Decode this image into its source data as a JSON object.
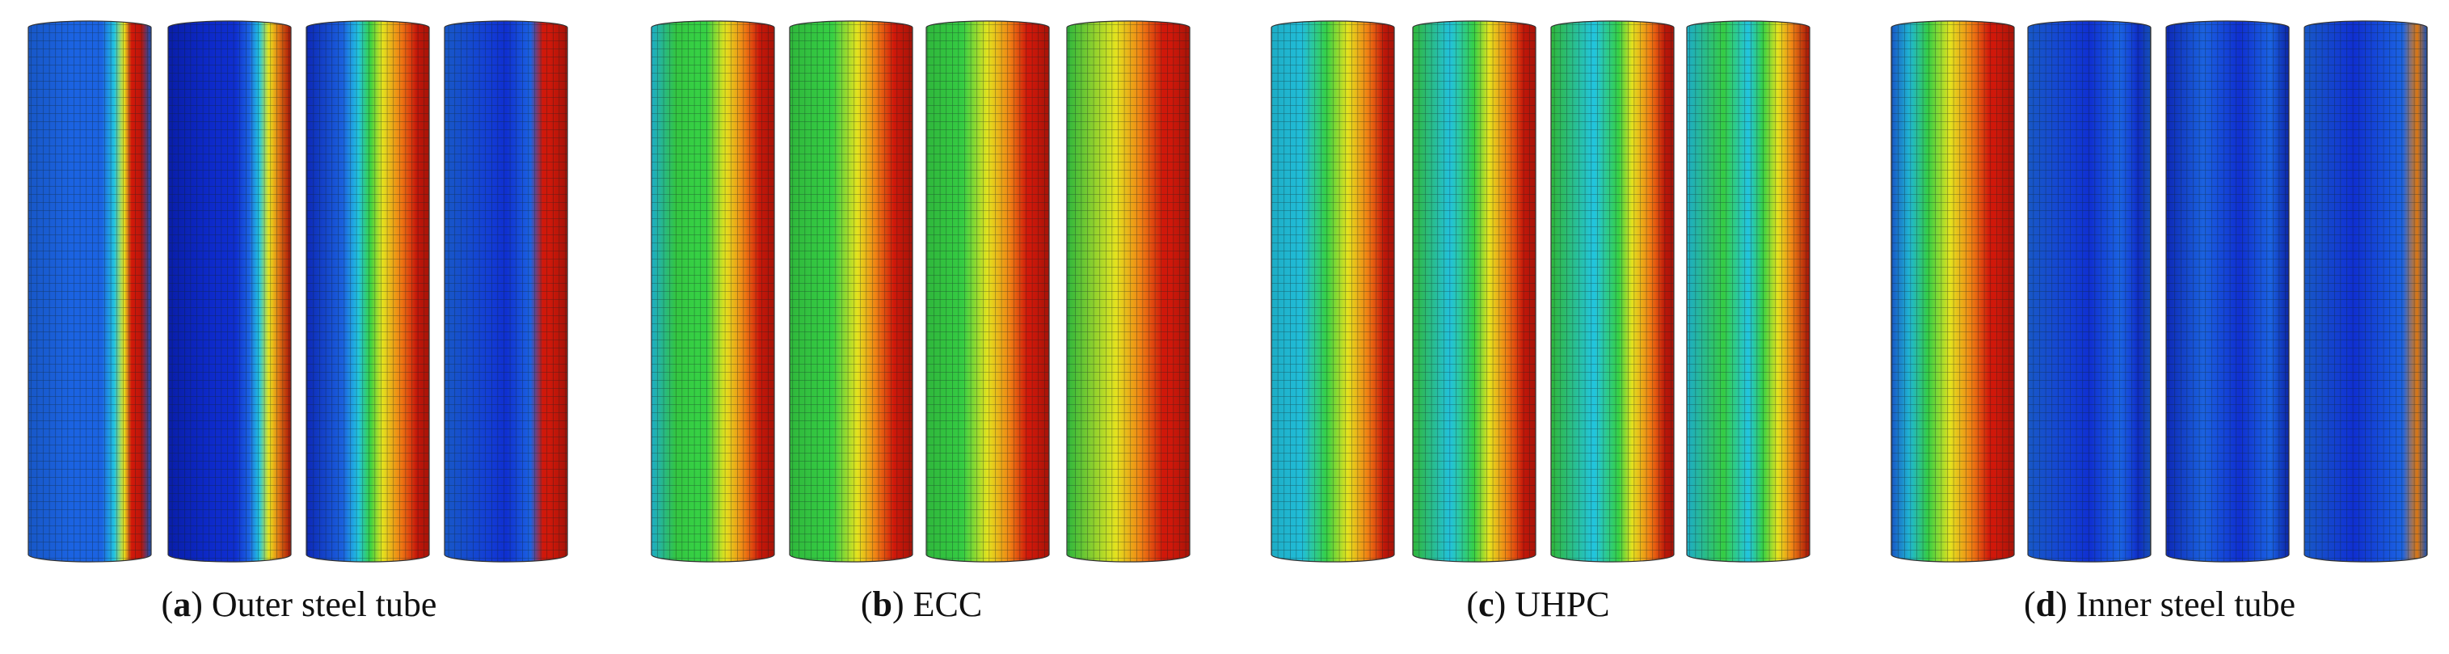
{
  "panels": [
    {
      "open": "(",
      "letter": "a",
      "close": ")",
      "caption": "Outer steel tube"
    },
    {
      "open": "(",
      "letter": "b",
      "close": ")",
      "caption": "ECC"
    },
    {
      "open": "(",
      "letter": "c",
      "close": ")",
      "caption": "UHPC"
    },
    {
      "open": "(",
      "letter": "d",
      "close": ")",
      "caption": "Inner steel tube"
    }
  ]
}
